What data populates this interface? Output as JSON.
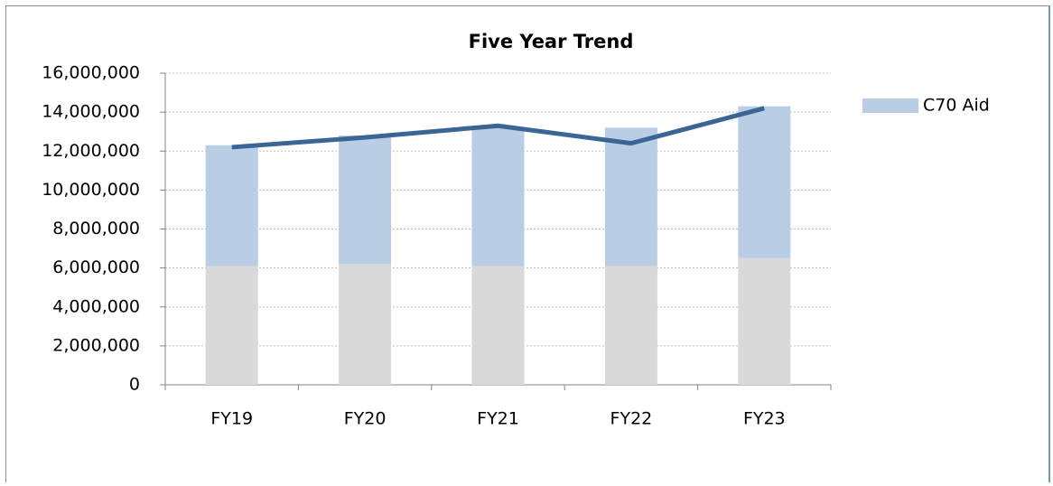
{
  "chart_data": {
    "type": "bar",
    "stacked": true,
    "title": "Five Year Trend",
    "categories": [
      "FY19",
      "FY20",
      "FY21",
      "FY22",
      "FY23"
    ],
    "series": [
      {
        "color": "#d9d9d9",
        "values": [
          6100000,
          6200000,
          6100000,
          6100000,
          6500000
        ]
      },
      {
        "name": "C70 Aid",
        "color": "#b9cde5",
        "values": [
          6200000,
          6600000,
          7100000,
          7100000,
          7800000
        ]
      },
      {
        "type": "line",
        "color": "#3b6594",
        "values": [
          12200000,
          12700000,
          13300000,
          12400000,
          14200000
        ]
      }
    ],
    "ylim": [
      0,
      16000000
    ],
    "yticks": [
      0,
      {
        "value": 2000000,
        "label": "2,000,000"
      },
      {
        "value": 4000000,
        "label": "4,000,000"
      },
      {
        "value": 6000000,
        "label": "6,000,000"
      },
      {
        "value": 8000000,
        "label": "8,000,000"
      },
      {
        "value": 10000000,
        "label": "10,000,000"
      },
      {
        "value": 12000000,
        "label": "12,000,000"
      },
      {
        "value": 14000000,
        "label": "14,000,000"
      },
      {
        "value": 16000000,
        "label": "16,000,000"
      }
    ],
    "grid": true,
    "legend": "right"
  }
}
